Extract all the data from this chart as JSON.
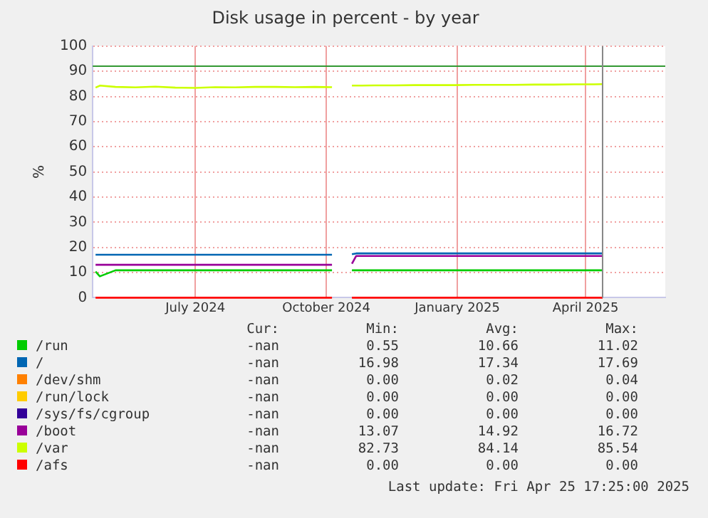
{
  "chart_data": {
    "type": "line",
    "title": "Disk usage in percent - by year",
    "ylabel": "%",
    "x": [
      "2024-04-22",
      "2024-04-25",
      "2024-05-06",
      "2024-05-20",
      "2024-06-03",
      "2024-06-17",
      "2024-07-01",
      "2024-07-15",
      "2024-07-29",
      "2024-08-12",
      "2024-08-26",
      "2024-09-09",
      "2024-09-23",
      "2024-10-05",
      "2024-10-12",
      "2024-10-19",
      "2024-10-22",
      "2024-11-04",
      "2024-11-18",
      "2024-12-02",
      "2024-12-16",
      "2024-12-30",
      "2025-01-13",
      "2025-01-27",
      "2025-02-10",
      "2025-02-24",
      "2025-03-10",
      "2025-03-24",
      "2025-04-07",
      "2025-04-13"
    ],
    "xlim": [
      "2024-04-20",
      "2025-05-27"
    ],
    "xticks": [
      {
        "value": "2024-07-01",
        "label": "July 2024"
      },
      {
        "value": "2024-10-01",
        "label": "October 2024"
      },
      {
        "value": "2025-01-01",
        "label": "January 2025"
      },
      {
        "value": "2025-04-01",
        "label": "April 2025"
      }
    ],
    "ylim": [
      0,
      100
    ],
    "yticks": [
      0,
      10,
      20,
      30,
      40,
      50,
      60,
      70,
      80,
      90,
      100
    ],
    "grid": true,
    "legend": "bottom",
    "marker": "none",
    "line_style": "solid",
    "series": [
      {
        "name": "/run",
        "color": "#00cc00",
        "values": [
          10.4,
          8.5,
          10.9,
          10.9,
          10.9,
          10.9,
          10.9,
          10.9,
          10.9,
          10.9,
          10.9,
          10.9,
          10.9,
          10.9,
          null,
          10.9,
          10.9,
          10.9,
          10.9,
          10.9,
          10.9,
          10.9,
          10.9,
          10.9,
          10.9,
          10.9,
          10.9,
          10.9,
          10.9,
          10.9
        ]
      },
      {
        "name": "/",
        "color": "#0066b3",
        "values": [
          17.1,
          17.1,
          17.1,
          17.1,
          17.1,
          17.1,
          17.1,
          17.1,
          17.1,
          17.1,
          17.1,
          17.1,
          17.1,
          17.1,
          null,
          17.3,
          17.6,
          17.6,
          17.6,
          17.6,
          17.6,
          17.6,
          17.6,
          17.6,
          17.6,
          17.6,
          17.6,
          17.6,
          17.6,
          17.6
        ]
      },
      {
        "name": "/dev/shm",
        "color": "#ff8000",
        "values": [
          null,
          null,
          null,
          null,
          null,
          null,
          null,
          null,
          null,
          null,
          null,
          null,
          null,
          null,
          null,
          null,
          null,
          null,
          null,
          null,
          null,
          null,
          null,
          null,
          null,
          null,
          null,
          null,
          null,
          null
        ]
      },
      {
        "name": "/run/lock",
        "color": "#ffcc00",
        "values": [
          null,
          null,
          null,
          null,
          null,
          null,
          null,
          null,
          null,
          null,
          null,
          null,
          null,
          null,
          null,
          null,
          null,
          null,
          null,
          null,
          null,
          null,
          null,
          null,
          null,
          null,
          null,
          null,
          null,
          null
        ]
      },
      {
        "name": "/sys/fs/cgroup",
        "color": "#330099",
        "values": [
          null,
          null,
          null,
          null,
          null,
          null,
          null,
          null,
          null,
          null,
          null,
          null,
          null,
          null,
          null,
          null,
          null,
          null,
          null,
          null,
          null,
          null,
          null,
          null,
          null,
          null,
          null,
          null,
          null,
          null
        ]
      },
      {
        "name": "/boot",
        "color": "#990099",
        "values": [
          13.1,
          13.1,
          13.1,
          13.1,
          13.1,
          13.1,
          13.1,
          13.1,
          13.1,
          13.1,
          13.1,
          13.1,
          13.1,
          13.1,
          null,
          13.5,
          16.6,
          16.6,
          16.6,
          16.6,
          16.6,
          16.6,
          16.6,
          16.6,
          16.6,
          16.6,
          16.6,
          16.6,
          16.6,
          16.6
        ]
      },
      {
        "name": "/var",
        "color": "#ccff00",
        "values": [
          83.5,
          84.3,
          83.8,
          83.6,
          83.9,
          83.5,
          83.4,
          83.7,
          83.6,
          83.8,
          83.8,
          83.7,
          83.8,
          83.7,
          null,
          84.3,
          84.3,
          84.4,
          84.4,
          84.5,
          84.5,
          84.5,
          84.6,
          84.6,
          84.6,
          84.7,
          84.7,
          84.8,
          84.8,
          84.9
        ]
      },
      {
        "name": "/afs",
        "color": "#ff0000",
        "values": [
          0,
          0,
          0,
          0,
          0,
          0,
          0,
          0,
          0,
          0,
          0,
          0,
          0,
          0,
          null,
          0,
          0,
          0,
          0,
          0,
          0,
          0,
          0,
          0,
          0,
          0,
          0,
          0,
          0,
          0
        ]
      }
    ],
    "ref_lines": [
      {
        "axis": "y",
        "value": 92,
        "color": "#339933"
      },
      {
        "axis": "x",
        "value": "2025-04-13",
        "color": "#888888"
      }
    ],
    "annotations": [
      "Cur:",
      "Min:",
      "Avg:",
      "Max:",
      "-nan",
      "0.55",
      "10.66",
      "11.02",
      "-nan",
      "16.98",
      "17.34",
      "17.69",
      "-nan",
      "0.00",
      "0.02",
      "0.04",
      "-nan",
      "0.00",
      "0.00",
      "0.00",
      "-nan",
      "0.00",
      "0.00",
      "0.00",
      "-nan",
      "13.07",
      "14.92",
      "16.72",
      "-nan",
      "82.73",
      "84.14",
      "85.54",
      "-nan",
      "0.00",
      "0.00",
      "0.00",
      "Last update: Fri Apr 25 17:25:00 2025"
    ]
  }
}
